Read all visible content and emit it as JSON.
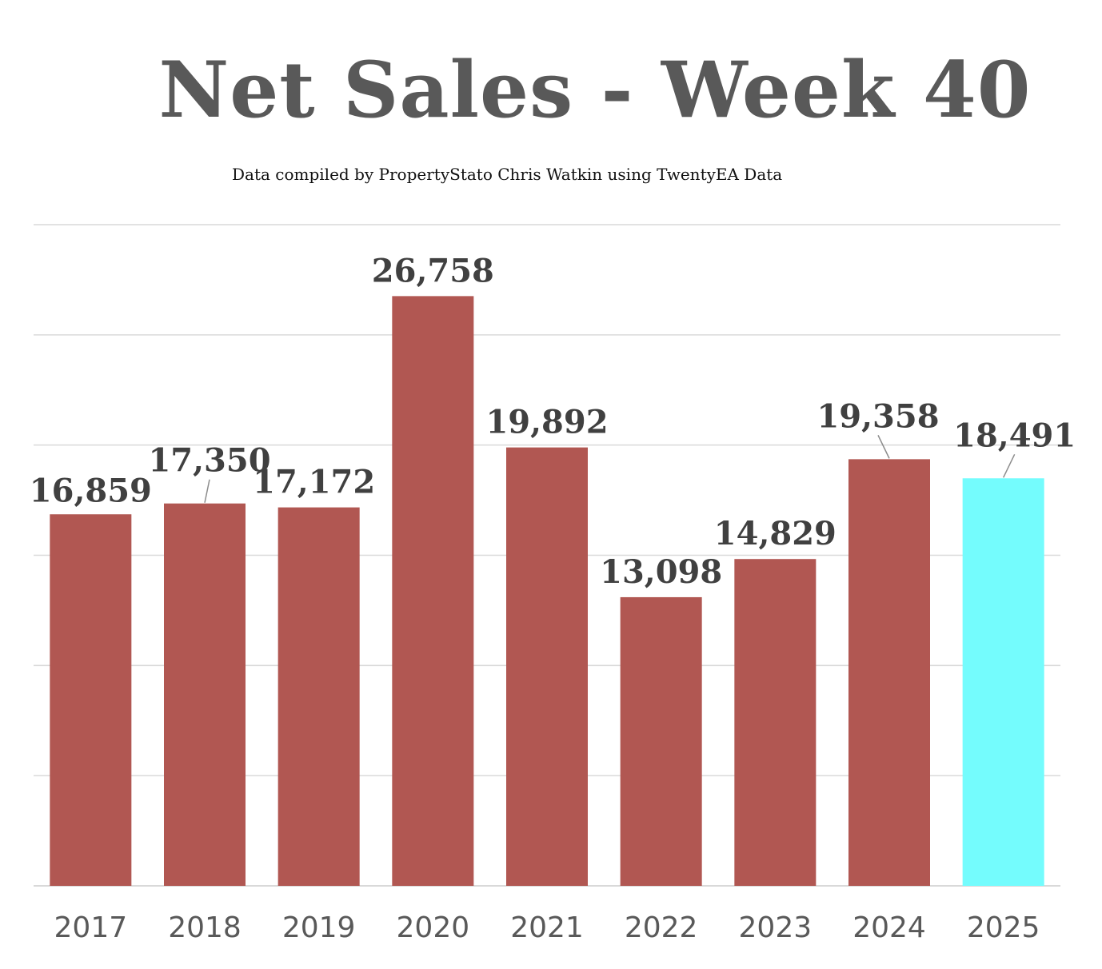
{
  "chart_data": {
    "type": "bar",
    "title": "Net Sales - Week 40",
    "subtitle": "Data compiled by PropertyStato Chris Watkin using TwentyEA Data",
    "categories": [
      "2017",
      "2018",
      "2019",
      "2020",
      "2021",
      "2022",
      "2023",
      "2024",
      "2025"
    ],
    "values": [
      16859,
      17350,
      17172,
      26758,
      19892,
      13098,
      14829,
      19358,
      18491
    ],
    "value_labels": [
      "16,859",
      "17,350",
      "17,172",
      "26,758",
      "19,892",
      "13,098",
      "14,829",
      "19,358",
      "18,491"
    ],
    "ylim": [
      0,
      30000
    ],
    "grid": true,
    "y_tick_labels_shown": false,
    "bar_colors": [
      "#b15752",
      "#b15752",
      "#b15752",
      "#b15752",
      "#b15752",
      "#b15752",
      "#b15752",
      "#b15752",
      "#74fcfd"
    ],
    "xlabel": "",
    "ylabel": ""
  }
}
